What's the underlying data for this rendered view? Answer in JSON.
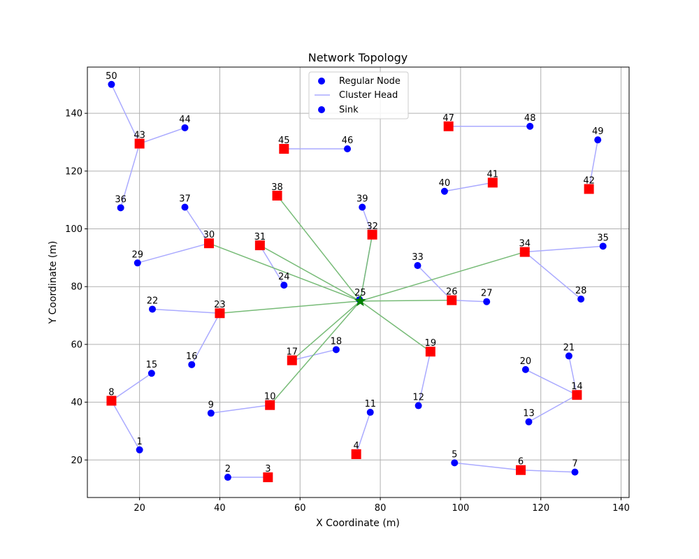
{
  "chart_data": {
    "type": "scatter",
    "title": "Network Topology",
    "xlabel": "X Coordinate (m)",
    "ylabel": "Y Coordinate (m)",
    "xlim": [
      7,
      142
    ],
    "ylim": [
      7,
      156
    ],
    "xticks": [
      20,
      40,
      60,
      80,
      100,
      120,
      140
    ],
    "yticks": [
      20,
      40,
      60,
      80,
      100,
      120,
      140
    ],
    "grid": true,
    "legend_placement": "top-center",
    "legend": [
      {
        "label": "Regular Node",
        "marker": "circle",
        "color": "#0000ff"
      },
      {
        "label": "Cluster Head",
        "marker": "line",
        "color": "#aaaaff"
      },
      {
        "label": "Sink",
        "marker": "circle",
        "color": "#0000ff"
      }
    ],
    "colors": {
      "regular_node": "#0000ff",
      "cluster_head": "#ff0000",
      "sink": "#008000",
      "member_link": "#aaaaff",
      "head_to_sink_link": "#77bb77",
      "grid": "#b0b0b0"
    },
    "sink": {
      "id": "25",
      "x": 75,
      "y": 75
    },
    "nodes": [
      {
        "id": "1",
        "x": 20,
        "y": 23.5,
        "role": "regular"
      },
      {
        "id": "2",
        "x": 42,
        "y": 14,
        "role": "regular"
      },
      {
        "id": "3",
        "x": 52,
        "y": 14,
        "role": "head"
      },
      {
        "id": "4",
        "x": 74,
        "y": 22,
        "role": "head"
      },
      {
        "id": "5",
        "x": 98.5,
        "y": 19,
        "role": "regular"
      },
      {
        "id": "6",
        "x": 115,
        "y": 16.5,
        "role": "head"
      },
      {
        "id": "7",
        "x": 128.5,
        "y": 15.8,
        "role": "regular"
      },
      {
        "id": "8",
        "x": 13,
        "y": 40.5,
        "role": "head"
      },
      {
        "id": "9",
        "x": 37.8,
        "y": 36.2,
        "role": "regular"
      },
      {
        "id": "10",
        "x": 52.5,
        "y": 39,
        "role": "head"
      },
      {
        "id": "11",
        "x": 77.5,
        "y": 36.5,
        "role": "regular"
      },
      {
        "id": "12",
        "x": 89.5,
        "y": 38.8,
        "role": "regular"
      },
      {
        "id": "13",
        "x": 117,
        "y": 33.2,
        "role": "regular"
      },
      {
        "id": "14",
        "x": 129,
        "y": 42.5,
        "role": "head"
      },
      {
        "id": "15",
        "x": 23,
        "y": 50,
        "role": "regular"
      },
      {
        "id": "16",
        "x": 33,
        "y": 53,
        "role": "regular"
      },
      {
        "id": "17",
        "x": 58,
        "y": 54.5,
        "role": "head"
      },
      {
        "id": "18",
        "x": 69,
        "y": 58.2,
        "role": "regular"
      },
      {
        "id": "19",
        "x": 92.5,
        "y": 57.5,
        "role": "head"
      },
      {
        "id": "20",
        "x": 116.2,
        "y": 51.3,
        "role": "regular"
      },
      {
        "id": "21",
        "x": 127,
        "y": 56,
        "role": "regular"
      },
      {
        "id": "22",
        "x": 23.2,
        "y": 72.2,
        "role": "regular"
      },
      {
        "id": "23",
        "x": 40,
        "y": 70.8,
        "role": "head"
      },
      {
        "id": "24",
        "x": 56,
        "y": 80.5,
        "role": "regular"
      },
      {
        "id": "26",
        "x": 97.8,
        "y": 75.3,
        "role": "head"
      },
      {
        "id": "27",
        "x": 106.5,
        "y": 74.8,
        "role": "regular"
      },
      {
        "id": "28",
        "x": 130,
        "y": 75.7,
        "role": "regular"
      },
      {
        "id": "29",
        "x": 19.5,
        "y": 88.2,
        "role": "regular"
      },
      {
        "id": "30",
        "x": 37.3,
        "y": 95,
        "role": "head"
      },
      {
        "id": "31",
        "x": 50,
        "y": 94.3,
        "role": "head"
      },
      {
        "id": "32",
        "x": 78,
        "y": 98,
        "role": "head"
      },
      {
        "id": "33",
        "x": 89.3,
        "y": 87.3,
        "role": "regular"
      },
      {
        "id": "34",
        "x": 116,
        "y": 92,
        "role": "head"
      },
      {
        "id": "35",
        "x": 135.5,
        "y": 94,
        "role": "regular"
      },
      {
        "id": "36",
        "x": 15.3,
        "y": 107.3,
        "role": "regular"
      },
      {
        "id": "37",
        "x": 31.3,
        "y": 107.5,
        "role": "regular"
      },
      {
        "id": "38",
        "x": 54.3,
        "y": 111.5,
        "role": "head"
      },
      {
        "id": "39",
        "x": 75.5,
        "y": 107.5,
        "role": "regular"
      },
      {
        "id": "40",
        "x": 96,
        "y": 113,
        "role": "regular"
      },
      {
        "id": "41",
        "x": 108,
        "y": 116,
        "role": "head"
      },
      {
        "id": "42",
        "x": 132,
        "y": 113.8,
        "role": "head"
      },
      {
        "id": "43",
        "x": 20,
        "y": 129.5,
        "role": "head"
      },
      {
        "id": "44",
        "x": 31.3,
        "y": 135,
        "role": "regular"
      },
      {
        "id": "45",
        "x": 56,
        "y": 127.7,
        "role": "head"
      },
      {
        "id": "46",
        "x": 71.8,
        "y": 127.7,
        "role": "regular"
      },
      {
        "id": "47",
        "x": 97,
        "y": 135.5,
        "role": "head"
      },
      {
        "id": "48",
        "x": 117.3,
        "y": 135.5,
        "role": "regular"
      },
      {
        "id": "49",
        "x": 134.2,
        "y": 130.8,
        "role": "regular"
      },
      {
        "id": "50",
        "x": 13,
        "y": 150,
        "role": "regular"
      }
    ],
    "member_links": [
      [
        "1",
        "8"
      ],
      [
        "15",
        "8"
      ],
      [
        "2",
        "3"
      ],
      [
        "9",
        "10"
      ],
      [
        "11",
        "4"
      ],
      [
        "5",
        "6"
      ],
      [
        "7",
        "6"
      ],
      [
        "12",
        "19"
      ],
      [
        "13",
        "14"
      ],
      [
        "20",
        "14"
      ],
      [
        "21",
        "14"
      ],
      [
        "16",
        "23"
      ],
      [
        "22",
        "23"
      ],
      [
        "18",
        "17"
      ],
      [
        "24",
        "31"
      ],
      [
        "29",
        "30"
      ],
      [
        "37",
        "30"
      ],
      [
        "33",
        "26"
      ],
      [
        "27",
        "26"
      ],
      [
        "28",
        "34"
      ],
      [
        "35",
        "34"
      ],
      [
        "39",
        "32"
      ],
      [
        "40",
        "41"
      ],
      [
        "49",
        "42"
      ],
      [
        "36",
        "43"
      ],
      [
        "44",
        "43"
      ],
      [
        "50",
        "43"
      ],
      [
        "46",
        "45"
      ],
      [
        "48",
        "47"
      ],
      [
        "25",
        "32"
      ]
    ],
    "head_links": [
      "38",
      "31",
      "30",
      "23",
      "17",
      "10",
      "19",
      "26",
      "34",
      "32"
    ]
  }
}
